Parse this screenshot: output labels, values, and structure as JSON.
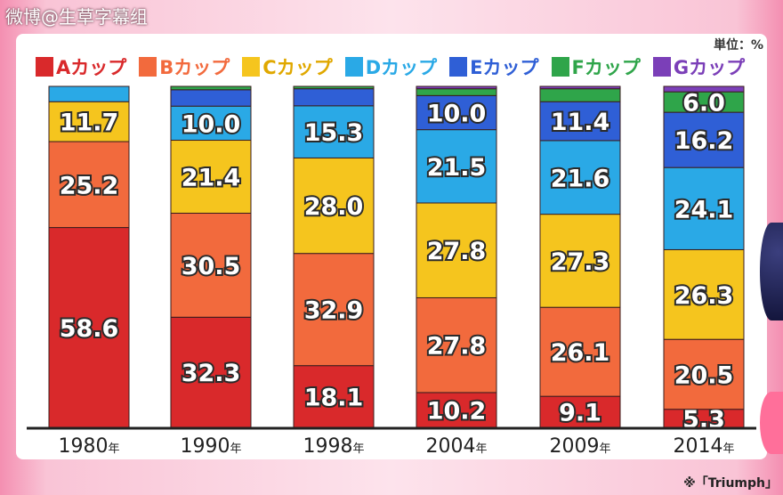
{
  "watermark": "微博@生草字幕组",
  "unit_label": "単位：%",
  "source_note": "※「Triumph」",
  "legend": [
    {
      "label": "Aカップ",
      "color": "#d9292b"
    },
    {
      "label": "Bカップ",
      "color": "#f26a3d"
    },
    {
      "label": "Cカップ",
      "color": "#f5c51e"
    },
    {
      "label": "Dカップ",
      "color": "#2aa9e6"
    },
    {
      "label": "Eカップ",
      "color": "#2f5fd6"
    },
    {
      "label": "Fカップ",
      "color": "#2fa54a"
    },
    {
      "label": "Gカップ",
      "color": "#7b3fb8"
    }
  ],
  "chart_data": {
    "type": "bar",
    "stacked": true,
    "title": "",
    "xlabel": "",
    "ylabel": "",
    "unit": "%",
    "categories": [
      "1980",
      "1990",
      "1998",
      "2004",
      "2009",
      "2014"
    ],
    "category_suffix": "年",
    "ylim": [
      0,
      100
    ],
    "grid": false,
    "legend_position": "top",
    "series": [
      {
        "name": "Aカップ",
        "color": "#d9292b",
        "values": [
          58.6,
          32.3,
          18.1,
          10.2,
          9.1,
          5.3
        ]
      },
      {
        "name": "Bカップ",
        "color": "#f26a3d",
        "values": [
          25.2,
          30.5,
          32.9,
          27.8,
          26.1,
          20.5
        ]
      },
      {
        "name": "Cカップ",
        "color": "#f5c51e",
        "values": [
          11.7,
          21.4,
          28.0,
          27.8,
          27.3,
          26.3
        ]
      },
      {
        "name": "Dカップ",
        "color": "#2aa9e6",
        "values": [
          4.5,
          10.0,
          15.3,
          21.5,
          21.6,
          24.1
        ]
      },
      {
        "name": "Eカップ",
        "color": "#2f5fd6",
        "values": [
          0,
          4.8,
          5.0,
          10.0,
          11.4,
          16.2
        ]
      },
      {
        "name": "Fカップ",
        "color": "#2fa54a",
        "values": [
          0,
          1.0,
          0.7,
          2.0,
          3.8,
          6.0
        ]
      },
      {
        "name": "Gカップ",
        "color": "#7b3fb8",
        "values": [
          0,
          0,
          0,
          0.7,
          0.7,
          1.6
        ]
      }
    ],
    "labels": [
      [
        "58.6",
        "25.2",
        "11.7",
        "",
        "",
        "",
        ""
      ],
      [
        "32.3",
        "30.5",
        "21.4",
        "10.0",
        "",
        "",
        ""
      ],
      [
        "18.1",
        "32.9",
        "28.0",
        "15.3",
        "",
        "",
        ""
      ],
      [
        "10.2",
        "27.8",
        "27.8",
        "21.5",
        "10.0",
        "",
        ""
      ],
      [
        "9.1",
        "26.1",
        "27.3",
        "21.6",
        "11.4",
        "",
        ""
      ],
      [
        "5.3",
        "20.5",
        "26.3",
        "24.1",
        "16.2",
        "6.0",
        ""
      ]
    ]
  }
}
